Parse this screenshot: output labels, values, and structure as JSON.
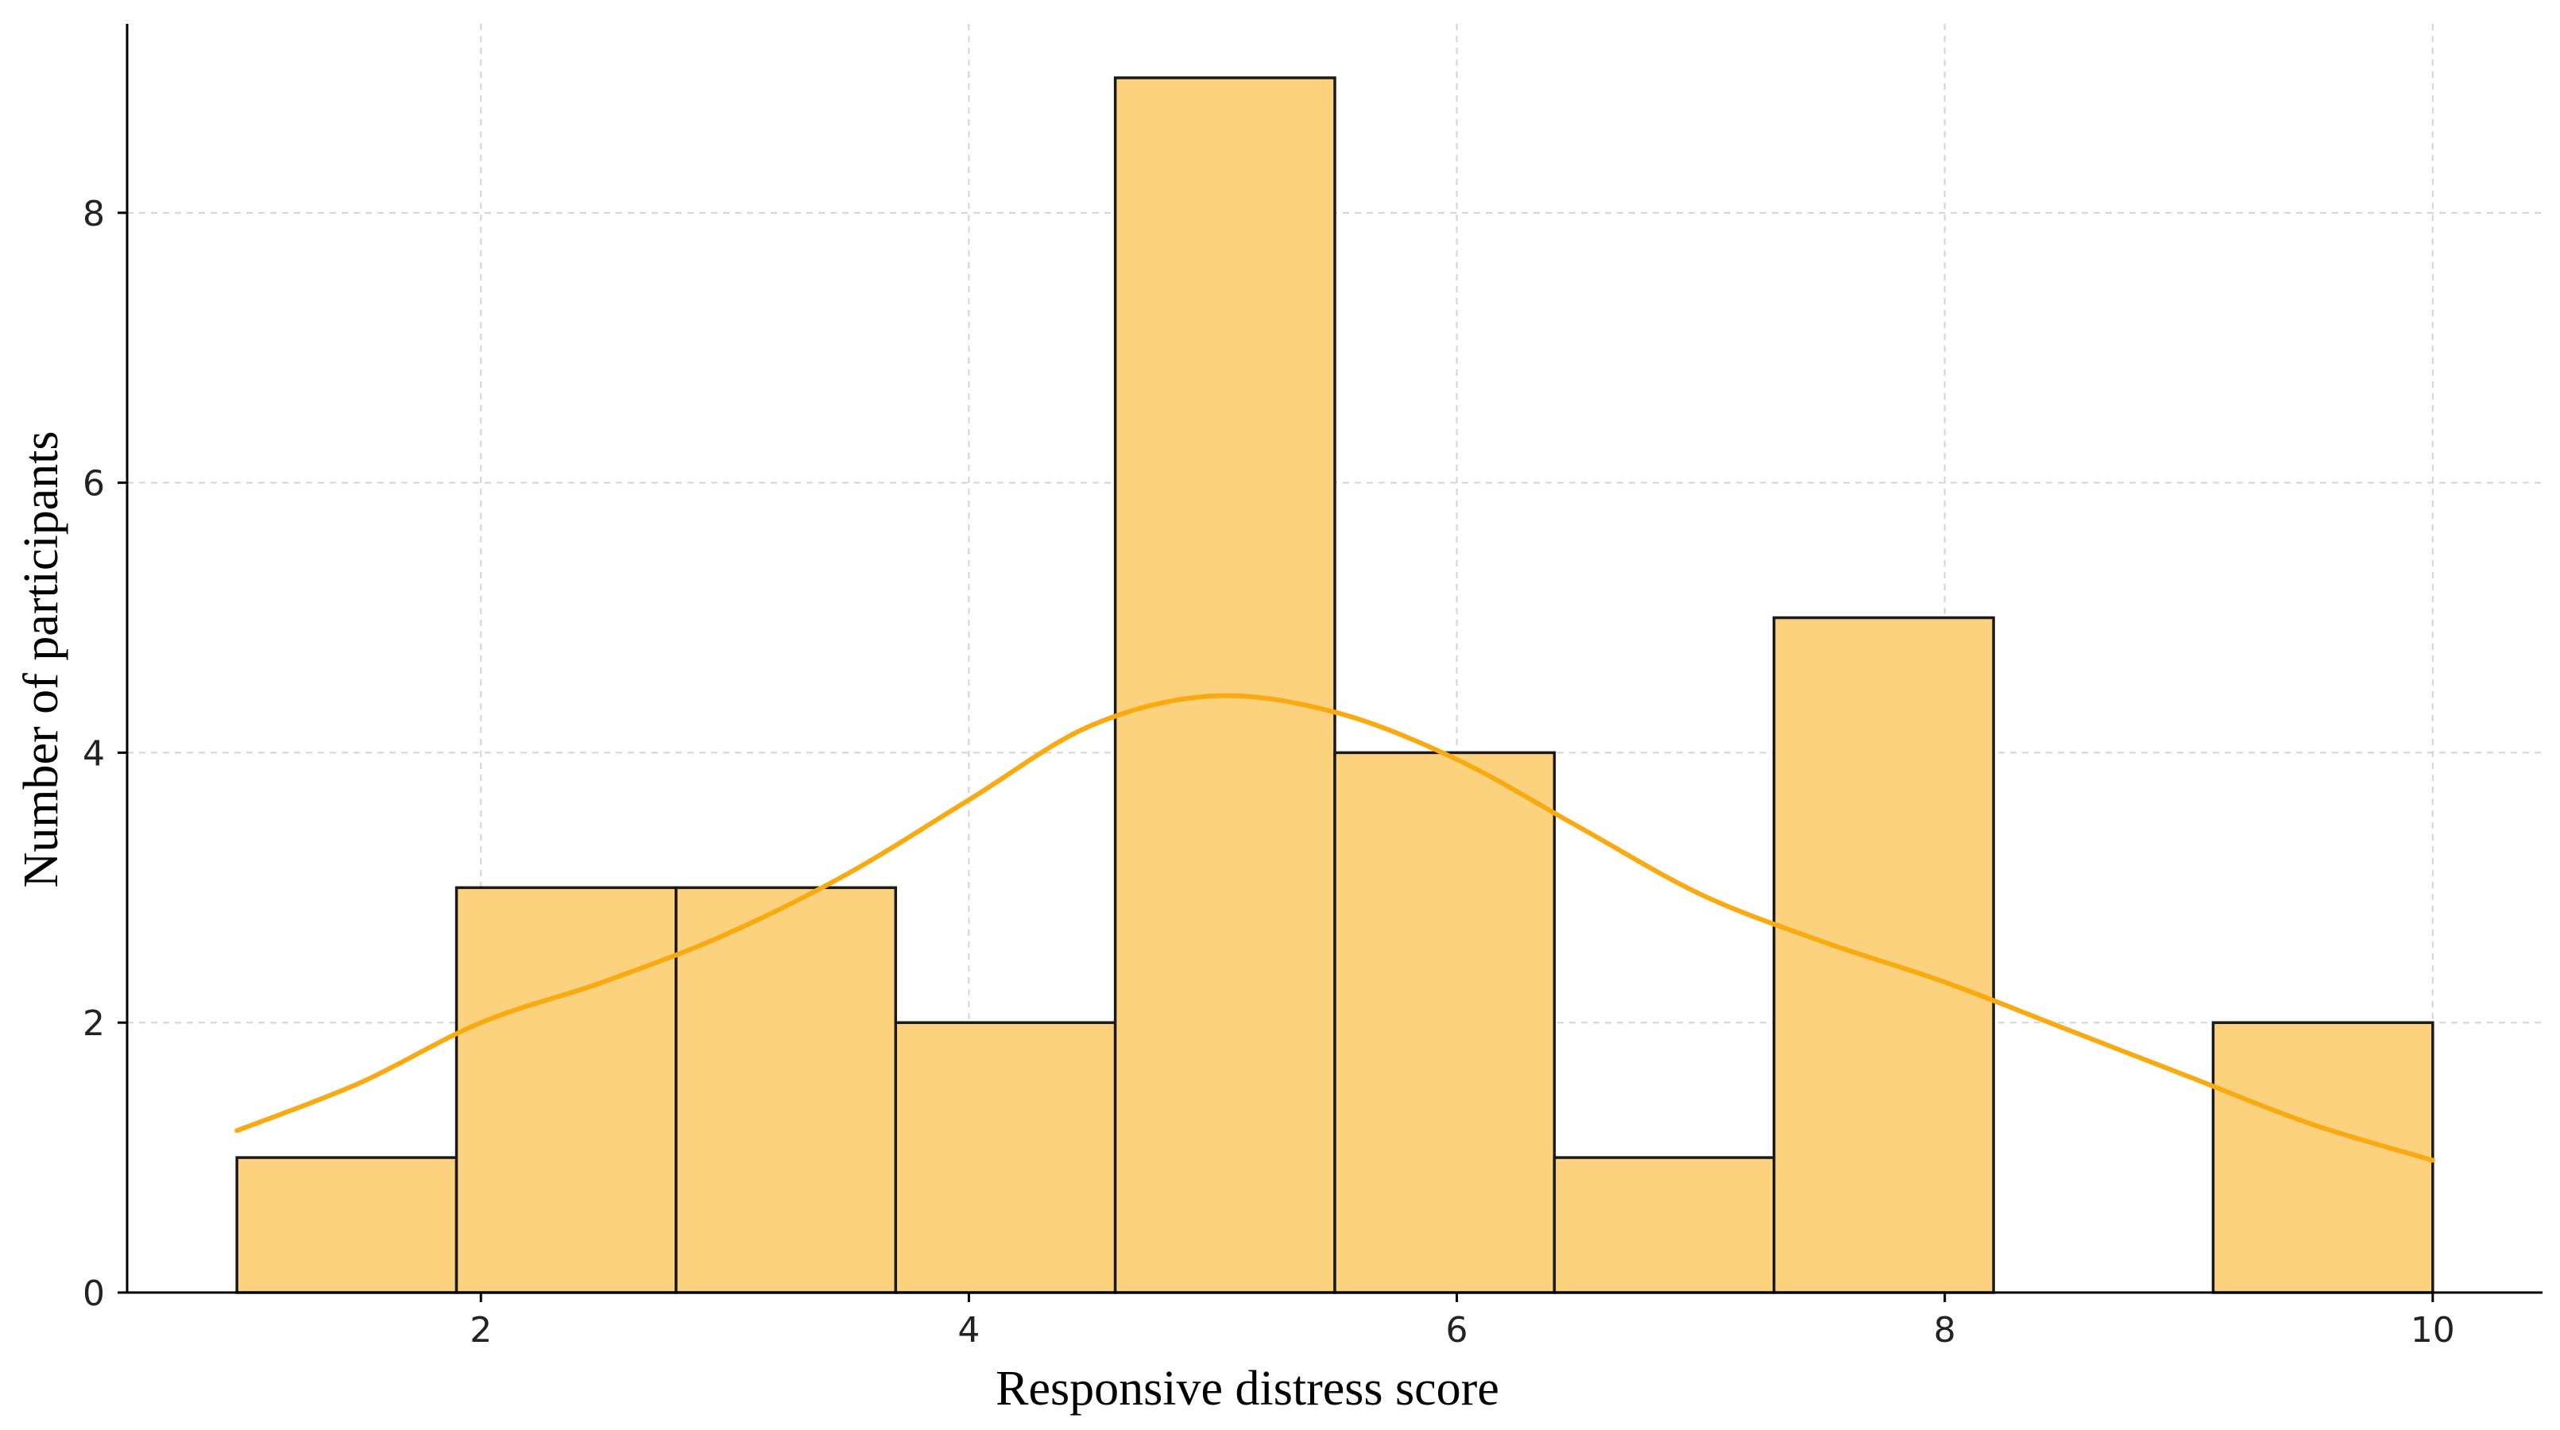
{
  "chart_data": {
    "type": "bar",
    "title": "",
    "xlabel": "Responsive distress score",
    "ylabel": "Number of participants",
    "xlim": [
      0.55,
      10.45
    ],
    "ylim": [
      0,
      9.4
    ],
    "x_ticks": [
      2,
      4,
      6,
      8,
      10
    ],
    "y_ticks": [
      0,
      2,
      4,
      6,
      8
    ],
    "grid": true,
    "histogram": {
      "bin_start": 1,
      "bin_width": 0.9,
      "counts": [
        1,
        3,
        3,
        2,
        9,
        4,
        1,
        5,
        0,
        2
      ]
    },
    "kde": {
      "x": [
        1.0,
        1.5,
        2.0,
        2.5,
        3.0,
        3.5,
        4.0,
        4.5,
        5.0,
        5.5,
        6.0,
        6.5,
        7.0,
        7.5,
        8.0,
        8.5,
        9.0,
        9.5,
        10.0
      ],
      "y": [
        1.2,
        1.55,
        2.0,
        2.3,
        2.65,
        3.1,
        3.65,
        4.2,
        4.42,
        4.3,
        3.95,
        3.45,
        2.95,
        2.6,
        2.3,
        1.95,
        1.6,
        1.25,
        0.98
      ]
    },
    "colors": {
      "bar_fill": "#fdd27e",
      "bar_edge": "#1a1a1a",
      "kde_line": "#f9aa10"
    }
  }
}
